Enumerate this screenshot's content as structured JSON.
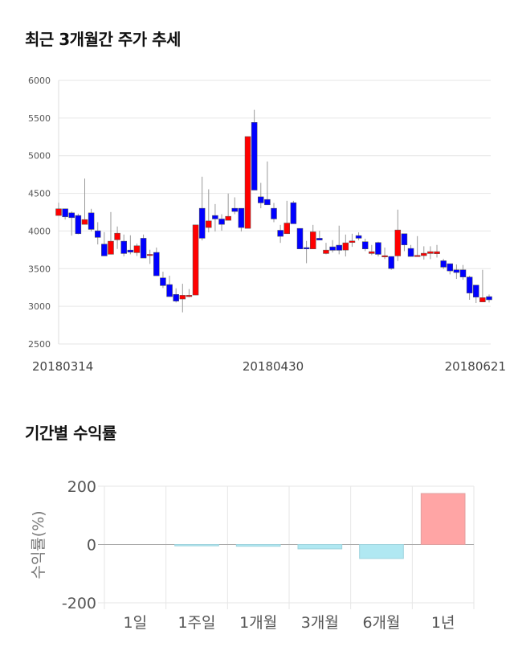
{
  "sections": {
    "price_title": "최근 3개월간 주가 추세",
    "return_title": "기간별 수익률"
  },
  "chart_data": [
    {
      "type": "candlestick",
      "title": "최근 3개월간 주가 추세",
      "ylim": [
        2500,
        6000
      ],
      "y_ticks": [
        "6000",
        "5500",
        "5000",
        "4500",
        "4000",
        "3500",
        "3000",
        "2500"
      ],
      "x_tick_labels": [
        "20180314",
        "20180430",
        "20180621"
      ],
      "grid": true,
      "up_color": "#ff0000",
      "down_color": "#0000ff",
      "candles": [
        [
          4206,
          4376,
          4206,
          4295
        ],
        [
          4295,
          4295,
          4152,
          4188
        ],
        [
          4241,
          4259,
          3939,
          4177
        ],
        [
          4206,
          4230,
          3957,
          3964
        ],
        [
          4088,
          4696,
          4088,
          4152
        ],
        [
          4241,
          4295,
          3993,
          4021
        ],
        [
          4003,
          4117,
          3822,
          3915
        ],
        [
          3826,
          3985,
          3669,
          3669
        ],
        [
          3691,
          4252,
          3691,
          3865
        ],
        [
          3883,
          4060,
          3762,
          3971
        ],
        [
          3865,
          3953,
          3662,
          3701
        ],
        [
          3747,
          3943,
          3691,
          3719
        ],
        [
          3712,
          3833,
          3669,
          3804
        ],
        [
          3904,
          3953,
          3641,
          3641
        ],
        [
          3680,
          3751,
          3563,
          3690
        ],
        [
          3716,
          3780,
          3406,
          3406
        ],
        [
          3378,
          3460,
          3243,
          3275
        ],
        [
          3289,
          3406,
          3129,
          3129
        ],
        [
          3158,
          3239,
          3051,
          3069
        ],
        [
          3097,
          3300,
          2920,
          3147
        ],
        [
          3129,
          3229,
          3120,
          3147
        ],
        [
          3150,
          4081,
          3150,
          4081
        ],
        [
          4302,
          4721,
          3875,
          3904
        ],
        [
          4046,
          4554,
          3982,
          4134
        ],
        [
          4206,
          4358,
          3993,
          4160
        ],
        [
          4160,
          4223,
          4003,
          4088
        ],
        [
          4142,
          4497,
          4142,
          4195
        ],
        [
          4302,
          4447,
          4223,
          4259
        ],
        [
          4302,
          4302,
          3993,
          4046
        ],
        [
          4035,
          5254,
          4035,
          5254
        ],
        [
          5442,
          5609,
          4543,
          4543
        ],
        [
          4454,
          4639,
          4302,
          4373
        ],
        [
          4419,
          4923,
          4348,
          4348
        ],
        [
          4302,
          4373,
          4117,
          4160
        ],
        [
          4010,
          4081,
          3843,
          3929
        ],
        [
          3964,
          4401,
          3964,
          4106
        ],
        [
          4376,
          4401,
          4096,
          4096
        ],
        [
          4035,
          4035,
          3762,
          3762
        ],
        [
          3780,
          3868,
          3573,
          3762
        ],
        [
          3762,
          4081,
          3762,
          3989
        ],
        [
          3904,
          4003,
          3879,
          3879
        ],
        [
          3701,
          3843,
          3691,
          3747
        ],
        [
          3790,
          3879,
          3715,
          3744
        ],
        [
          3812,
          4071,
          3691,
          3744
        ],
        [
          3747,
          3953,
          3662,
          3843
        ],
        [
          3847,
          3964,
          3790,
          3868
        ],
        [
          3939,
          3982,
          3875,
          3904
        ],
        [
          3858,
          3897,
          3733,
          3762
        ],
        [
          3701,
          3815,
          3680,
          3726
        ],
        [
          3847,
          3858,
          3662,
          3690
        ],
        [
          3655,
          3780,
          3627,
          3673
        ],
        [
          3662,
          3662,
          3485,
          3502
        ],
        [
          3669,
          4284,
          3602,
          4014
        ],
        [
          3964,
          3964,
          3733,
          3815
        ],
        [
          3769,
          3815,
          3662,
          3662
        ],
        [
          3662,
          3932,
          3662,
          3676
        ],
        [
          3673,
          3797,
          3620,
          3705
        ],
        [
          3701,
          3797,
          3627,
          3726
        ],
        [
          3698,
          3815,
          3648,
          3726
        ],
        [
          3605,
          3630,
          3495,
          3520
        ],
        [
          3566,
          3566,
          3424,
          3470
        ],
        [
          3485,
          3556,
          3364,
          3449
        ],
        [
          3485,
          3549,
          3353,
          3389
        ],
        [
          3389,
          3406,
          3087,
          3176
        ],
        [
          3282,
          3282,
          3044,
          3122
        ],
        [
          3058,
          3485,
          3058,
          3115
        ],
        [
          3129,
          3158,
          3051,
          3087
        ]
      ]
    },
    {
      "type": "bar",
      "title": "기간별 수익률",
      "ylabel": "수익률(%)",
      "ylim": [
        -200,
        200
      ],
      "y_ticks": [
        "200",
        "0",
        "-200"
      ],
      "categories": [
        "1일",
        "1주일",
        "1개월",
        "3개월",
        "6개월",
        "1년"
      ],
      "values": [
        0,
        -4.5,
        -6,
        -15,
        -48,
        175
      ],
      "positive_color": "#ffa5a5",
      "negative_color": "#b0e8f2",
      "grid": true
    }
  ]
}
